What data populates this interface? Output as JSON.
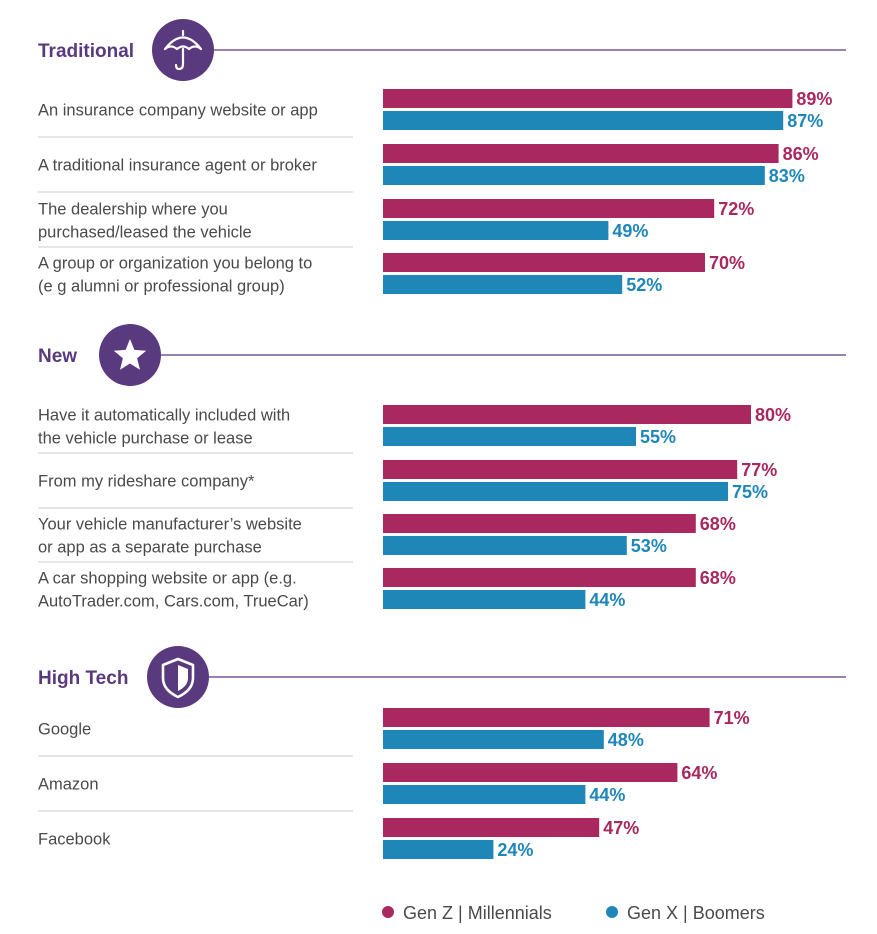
{
  "colors": {
    "genz_millennials": "#a8285f",
    "genx_boomers": "#1f86b8",
    "section": "#5a3a7e",
    "divider": "#cccccc"
  },
  "legend": {
    "series1": "Gen Z | Millennials",
    "series2": "Gen X | Boomers"
  },
  "chart_data": {
    "type": "bar",
    "orientation": "horizontal",
    "series": [
      {
        "name": "Gen Z | Millennials"
      },
      {
        "name": "Gen X | Boomers"
      }
    ],
    "xlim": [
      0,
      100
    ],
    "grid": false,
    "legend_position": "bottom-right",
    "sections": [
      {
        "title": "Traditional",
        "icon": "umbrella-icon",
        "rows": [
          {
            "label": [
              "An insurance company website or app"
            ],
            "values": [
              89,
              87
            ],
            "value_labels": [
              "89%",
              "87%"
            ]
          },
          {
            "label": [
              "A traditional insurance agent or broker"
            ],
            "values": [
              86,
              83
            ],
            "value_labels": [
              "86%",
              "83%"
            ]
          },
          {
            "label": [
              "The dealership where you",
              "purchased/leased the vehicle"
            ],
            "values": [
              72,
              49
            ],
            "value_labels": [
              "72%",
              "49%"
            ]
          },
          {
            "label": [
              "A group or organization you belong to",
              "(e g  alumni or professional group)"
            ],
            "values": [
              70,
              52
            ],
            "value_labels": [
              "70%",
              "52%"
            ]
          }
        ]
      },
      {
        "title": "New",
        "icon": "star-icon",
        "rows": [
          {
            "label": [
              "Have it automatically included with",
              "the vehicle purchase or lease"
            ],
            "values": [
              80,
              55
            ],
            "value_labels": [
              "80%",
              "55%"
            ]
          },
          {
            "label": [
              "From my rideshare company*"
            ],
            "values": [
              77,
              75
            ],
            "value_labels": [
              "77%",
              "75%"
            ]
          },
          {
            "label": [
              "Your vehicle manufacturer’s website",
              "or app as a separate purchase"
            ],
            "values": [
              68,
              53
            ],
            "value_labels": [
              "68%",
              "53%"
            ]
          },
          {
            "label": [
              "A car shopping website or app (e.g.",
              "AutoTrader.com, Cars.com, TrueCar)"
            ],
            "values": [
              68,
              44
            ],
            "value_labels": [
              "68%",
              "44%"
            ]
          }
        ]
      },
      {
        "title": "High Tech",
        "icon": "shield-icon",
        "rows": [
          {
            "label": [
              "Google"
            ],
            "values": [
              71,
              48
            ],
            "value_labels": [
              "71%",
              "48%"
            ]
          },
          {
            "label": [
              "Amazon"
            ],
            "values": [
              64,
              44
            ],
            "value_labels": [
              "64%",
              "44%"
            ]
          },
          {
            "label": [
              "Facebook"
            ],
            "values": [
              47,
              24
            ],
            "value_labels": [
              "47%",
              "24%"
            ]
          }
        ]
      }
    ]
  }
}
